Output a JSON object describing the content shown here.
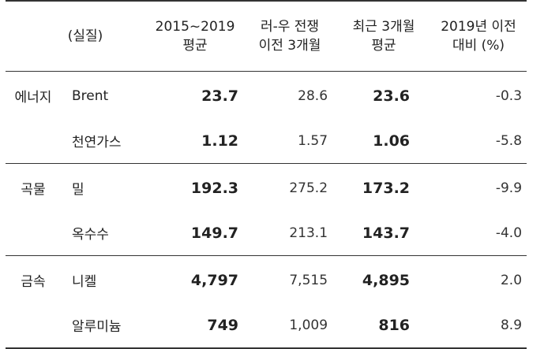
{
  "header": {
    "unit": "(실질)",
    "avg_2015_2019": [
      "2015~2019",
      "평균"
    ],
    "pre_war_3m": [
      "러-우 전쟁",
      "이전 3개월"
    ],
    "recent_3m": [
      "최근 3개월",
      "평균"
    ],
    "vs_2019": [
      "2019년 이전",
      "대비 (%)"
    ]
  },
  "rows": [
    {
      "group": "에너지",
      "item": "Brent",
      "avg": "23.7",
      "pre": "28.6",
      "recent": "23.6",
      "chg": "-0.3"
    },
    {
      "group": "",
      "item": "천연가스",
      "avg": "1.12",
      "pre": "1.57",
      "recent": "1.06",
      "chg": "-5.8"
    },
    {
      "group": "곡물",
      "item": "밀",
      "avg": "192.3",
      "pre": "275.2",
      "recent": "173.2",
      "chg": "-9.9"
    },
    {
      "group": "",
      "item": "옥수수",
      "avg": "149.7",
      "pre": "213.1",
      "recent": "143.7",
      "chg": "-4.0"
    },
    {
      "group": "금속",
      "item": "니켈",
      "avg": "4,797",
      "pre": "7,515",
      "recent": "4,895",
      "chg": "2.0"
    },
    {
      "group": "",
      "item": "알루미늄",
      "avg": "749",
      "pre": "1,009",
      "recent": "816",
      "chg": "8.9"
    }
  ]
}
